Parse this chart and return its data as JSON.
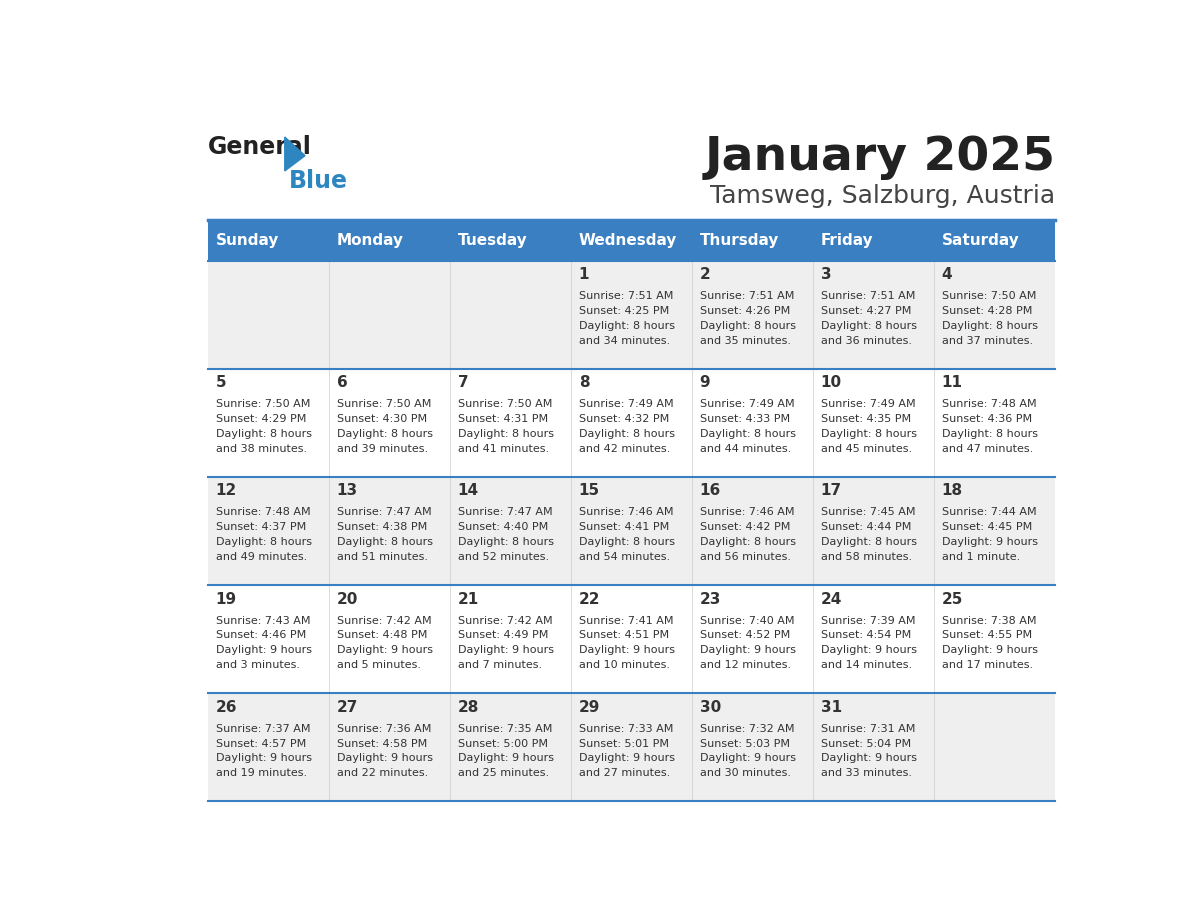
{
  "title": "January 2025",
  "subtitle": "Tamsweg, Salzburg, Austria",
  "days_of_week": [
    "Sunday",
    "Monday",
    "Tuesday",
    "Wednesday",
    "Thursday",
    "Friday",
    "Saturday"
  ],
  "header_bg": "#3a7fc1",
  "header_text": "#ffffff",
  "row_bg_odd": "#efefef",
  "row_bg_even": "#ffffff",
  "day_number_color": "#333333",
  "info_text_color": "#333333",
  "divider_color": "#3a7fc1",
  "title_color": "#222222",
  "subtitle_color": "#444444",
  "logo_general_color": "#222222",
  "logo_blue_color": "#2e86c1",
  "calendar_data": [
    [
      null,
      null,
      null,
      {
        "day": 1,
        "sunrise": "7:51 AM",
        "sunset": "4:25 PM",
        "daylight_line1": "Daylight: 8 hours",
        "daylight_line2": "and 34 minutes."
      },
      {
        "day": 2,
        "sunrise": "7:51 AM",
        "sunset": "4:26 PM",
        "daylight_line1": "Daylight: 8 hours",
        "daylight_line2": "and 35 minutes."
      },
      {
        "day": 3,
        "sunrise": "7:51 AM",
        "sunset": "4:27 PM",
        "daylight_line1": "Daylight: 8 hours",
        "daylight_line2": "and 36 minutes."
      },
      {
        "day": 4,
        "sunrise": "7:50 AM",
        "sunset": "4:28 PM",
        "daylight_line1": "Daylight: 8 hours",
        "daylight_line2": "and 37 minutes."
      }
    ],
    [
      {
        "day": 5,
        "sunrise": "7:50 AM",
        "sunset": "4:29 PM",
        "daylight_line1": "Daylight: 8 hours",
        "daylight_line2": "and 38 minutes."
      },
      {
        "day": 6,
        "sunrise": "7:50 AM",
        "sunset": "4:30 PM",
        "daylight_line1": "Daylight: 8 hours",
        "daylight_line2": "and 39 minutes."
      },
      {
        "day": 7,
        "sunrise": "7:50 AM",
        "sunset": "4:31 PM",
        "daylight_line1": "Daylight: 8 hours",
        "daylight_line2": "and 41 minutes."
      },
      {
        "day": 8,
        "sunrise": "7:49 AM",
        "sunset": "4:32 PM",
        "daylight_line1": "Daylight: 8 hours",
        "daylight_line2": "and 42 minutes."
      },
      {
        "day": 9,
        "sunrise": "7:49 AM",
        "sunset": "4:33 PM",
        "daylight_line1": "Daylight: 8 hours",
        "daylight_line2": "and 44 minutes."
      },
      {
        "day": 10,
        "sunrise": "7:49 AM",
        "sunset": "4:35 PM",
        "daylight_line1": "Daylight: 8 hours",
        "daylight_line2": "and 45 minutes."
      },
      {
        "day": 11,
        "sunrise": "7:48 AM",
        "sunset": "4:36 PM",
        "daylight_line1": "Daylight: 8 hours",
        "daylight_line2": "and 47 minutes."
      }
    ],
    [
      {
        "day": 12,
        "sunrise": "7:48 AM",
        "sunset": "4:37 PM",
        "daylight_line1": "Daylight: 8 hours",
        "daylight_line2": "and 49 minutes."
      },
      {
        "day": 13,
        "sunrise": "7:47 AM",
        "sunset": "4:38 PM",
        "daylight_line1": "Daylight: 8 hours",
        "daylight_line2": "and 51 minutes."
      },
      {
        "day": 14,
        "sunrise": "7:47 AM",
        "sunset": "4:40 PM",
        "daylight_line1": "Daylight: 8 hours",
        "daylight_line2": "and 52 minutes."
      },
      {
        "day": 15,
        "sunrise": "7:46 AM",
        "sunset": "4:41 PM",
        "daylight_line1": "Daylight: 8 hours",
        "daylight_line2": "and 54 minutes."
      },
      {
        "day": 16,
        "sunrise": "7:46 AM",
        "sunset": "4:42 PM",
        "daylight_line1": "Daylight: 8 hours",
        "daylight_line2": "and 56 minutes."
      },
      {
        "day": 17,
        "sunrise": "7:45 AM",
        "sunset": "4:44 PM",
        "daylight_line1": "Daylight: 8 hours",
        "daylight_line2": "and 58 minutes."
      },
      {
        "day": 18,
        "sunrise": "7:44 AM",
        "sunset": "4:45 PM",
        "daylight_line1": "Daylight: 9 hours",
        "daylight_line2": "and 1 minute."
      }
    ],
    [
      {
        "day": 19,
        "sunrise": "7:43 AM",
        "sunset": "4:46 PM",
        "daylight_line1": "Daylight: 9 hours",
        "daylight_line2": "and 3 minutes."
      },
      {
        "day": 20,
        "sunrise": "7:42 AM",
        "sunset": "4:48 PM",
        "daylight_line1": "Daylight: 9 hours",
        "daylight_line2": "and 5 minutes."
      },
      {
        "day": 21,
        "sunrise": "7:42 AM",
        "sunset": "4:49 PM",
        "daylight_line1": "Daylight: 9 hours",
        "daylight_line2": "and 7 minutes."
      },
      {
        "day": 22,
        "sunrise": "7:41 AM",
        "sunset": "4:51 PM",
        "daylight_line1": "Daylight: 9 hours",
        "daylight_line2": "and 10 minutes."
      },
      {
        "day": 23,
        "sunrise": "7:40 AM",
        "sunset": "4:52 PM",
        "daylight_line1": "Daylight: 9 hours",
        "daylight_line2": "and 12 minutes."
      },
      {
        "day": 24,
        "sunrise": "7:39 AM",
        "sunset": "4:54 PM",
        "daylight_line1": "Daylight: 9 hours",
        "daylight_line2": "and 14 minutes."
      },
      {
        "day": 25,
        "sunrise": "7:38 AM",
        "sunset": "4:55 PM",
        "daylight_line1": "Daylight: 9 hours",
        "daylight_line2": "and 17 minutes."
      }
    ],
    [
      {
        "day": 26,
        "sunrise": "7:37 AM",
        "sunset": "4:57 PM",
        "daylight_line1": "Daylight: 9 hours",
        "daylight_line2": "and 19 minutes."
      },
      {
        "day": 27,
        "sunrise": "7:36 AM",
        "sunset": "4:58 PM",
        "daylight_line1": "Daylight: 9 hours",
        "daylight_line2": "and 22 minutes."
      },
      {
        "day": 28,
        "sunrise": "7:35 AM",
        "sunset": "5:00 PM",
        "daylight_line1": "Daylight: 9 hours",
        "daylight_line2": "and 25 minutes."
      },
      {
        "day": 29,
        "sunrise": "7:33 AM",
        "sunset": "5:01 PM",
        "daylight_line1": "Daylight: 9 hours",
        "daylight_line2": "and 27 minutes."
      },
      {
        "day": 30,
        "sunrise": "7:32 AM",
        "sunset": "5:03 PM",
        "daylight_line1": "Daylight: 9 hours",
        "daylight_line2": "and 30 minutes."
      },
      {
        "day": 31,
        "sunrise": "7:31 AM",
        "sunset": "5:04 PM",
        "daylight_line1": "Daylight: 9 hours",
        "daylight_line2": "and 33 minutes."
      },
      null
    ]
  ]
}
